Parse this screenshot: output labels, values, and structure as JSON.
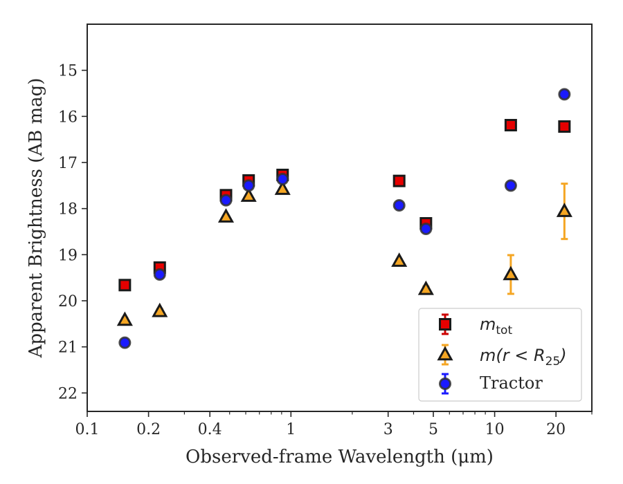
{
  "chart_data": {
    "type": "scatter",
    "title": "",
    "xlabel": "Observed-frame Wavelength (μm)",
    "ylabel": "Apparent Brightness (AB mag)",
    "xscale": "log",
    "xlim": [
      0.1,
      30
    ],
    "ylim": [
      22.4,
      14.0
    ],
    "y_inverted": true,
    "grid": false,
    "legend_position": "lower-right",
    "x_ticks": [
      {
        "value": 0.1,
        "label": "0.1"
      },
      {
        "value": 0.2,
        "label": "0.2"
      },
      {
        "value": 0.4,
        "label": "0.4"
      },
      {
        "value": 1,
        "label": "1"
      },
      {
        "value": 3,
        "label": "3"
      },
      {
        "value": 5,
        "label": "5"
      },
      {
        "value": 10,
        "label": "10"
      },
      {
        "value": 20,
        "label": "20"
      }
    ],
    "y_ticks": [
      {
        "value": 15,
        "label": "15"
      },
      {
        "value": 16,
        "label": "16"
      },
      {
        "value": 17,
        "label": "17"
      },
      {
        "value": 18,
        "label": "18"
      },
      {
        "value": 19,
        "label": "19"
      },
      {
        "value": 20,
        "label": "20"
      },
      {
        "value": 21,
        "label": "21"
      },
      {
        "value": 22,
        "label": "22"
      }
    ],
    "series": [
      {
        "key": "mtot",
        "marker": "square",
        "fill": "#e60000",
        "errcolor": "#cc0000",
        "x": [
          0.153,
          0.227,
          0.48,
          0.62,
          0.91,
          3.4,
          4.6,
          12.0,
          22.0
        ],
        "y": [
          19.66,
          19.28,
          17.71,
          17.39,
          17.27,
          17.4,
          18.32,
          16.19,
          16.22
        ],
        "yerr": [
          0.05,
          0.05,
          0.03,
          0.03,
          0.03,
          0.03,
          0.04,
          0.05,
          0.06
        ]
      },
      {
        "key": "mr25",
        "marker": "triangle",
        "fill": "#f5a623",
        "errcolor": "#f5a623",
        "x": [
          0.153,
          0.227,
          0.48,
          0.62,
          0.91,
          3.4,
          4.6,
          12.0,
          22.0
        ],
        "y": [
          20.42,
          20.23,
          18.18,
          17.73,
          17.58,
          19.14,
          19.75,
          19.43,
          18.06
        ],
        "yerr": [
          0.05,
          0.05,
          0.03,
          0.03,
          0.03,
          0.04,
          0.06,
          0.42,
          0.6
        ]
      },
      {
        "key": "tractor",
        "marker": "circle",
        "fill": "#1a1aff",
        "errcolor": "#1a1aff",
        "x": [
          0.153,
          0.227,
          0.48,
          0.62,
          0.91,
          3.4,
          4.6,
          12.0,
          22.0
        ],
        "y": [
          20.91,
          19.43,
          17.82,
          17.5,
          17.36,
          17.93,
          18.44,
          17.5,
          15.52
        ],
        "yerr": [
          0.04,
          0.04,
          0.02,
          0.02,
          0.02,
          0.03,
          0.04,
          0.06,
          0.06
        ]
      }
    ]
  },
  "legend": {
    "mtot": {
      "base": "m",
      "sub": "tot"
    },
    "mr25": {
      "base": "m(r < R",
      "sub": "25",
      "close": ")"
    },
    "tractor": {
      "text": "Tractor"
    }
  },
  "colors": {
    "axes": "#262626",
    "marker_edge": "#1a1a1a"
  }
}
